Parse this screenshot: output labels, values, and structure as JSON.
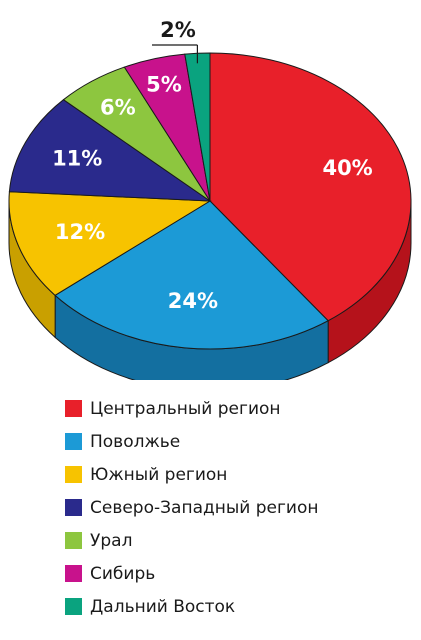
{
  "chart_data": {
    "type": "pie",
    "title": "",
    "categories": [
      "Центральный регион",
      "Поволжье",
      "Южный регион",
      "Северо-Западный регион",
      "Урал",
      "Сибирь",
      "Дальний Восток"
    ],
    "values": [
      40,
      24,
      12,
      11,
      6,
      5,
      2
    ],
    "value_labels": [
      "40%",
      "24%",
      "12%",
      "11%",
      "6%",
      "5%",
      "2%"
    ],
    "colors": [
      "#e8202a",
      "#1c9ad6",
      "#f7c300",
      "#2a2a8c",
      "#8dc63f",
      "#c8128c",
      "#0aa37f"
    ],
    "side_colors": [
      "#b5121b",
      "#136fa0",
      "#c9a000",
      "#1a1a66",
      "#6b9a2a",
      "#8e0d66",
      "#077a5f"
    ],
    "label_colors": [
      "#ffffff",
      "#ffffff",
      "#ffffff",
      "#ffffff",
      "#ffffff",
      "#ffffff",
      "#1a1a1a"
    ],
    "legend_placement": "bottom",
    "style": "3d"
  }
}
